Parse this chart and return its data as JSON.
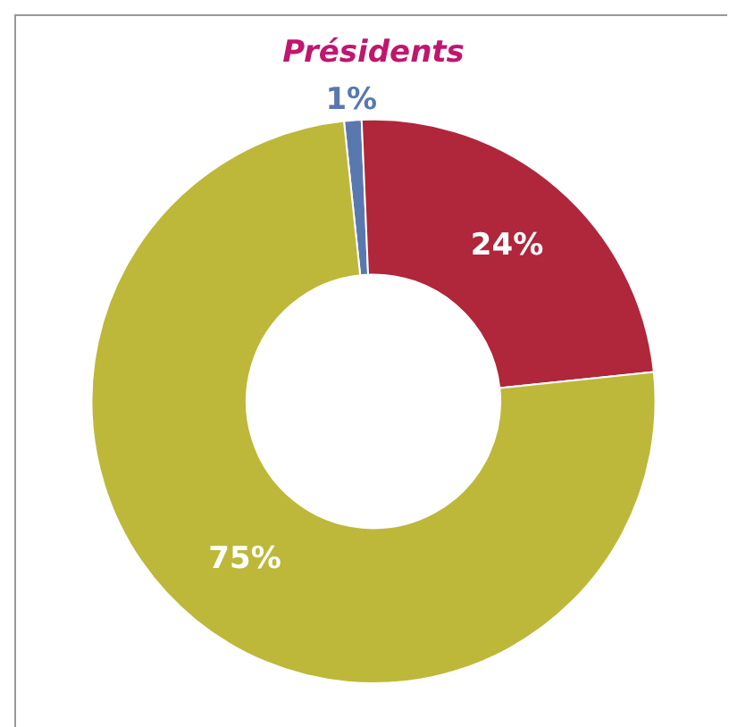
{
  "chart_data": {
    "type": "donut",
    "title": "Présidents",
    "categories": [
      null,
      null,
      null
    ],
    "values": [
      1,
      24,
      75
    ],
    "colors": [
      "#5a78b0",
      "#b0263a",
      "#bdb83a"
    ],
    "value_labels": [
      "1%",
      "24%",
      "75%"
    ],
    "legend": false
  }
}
